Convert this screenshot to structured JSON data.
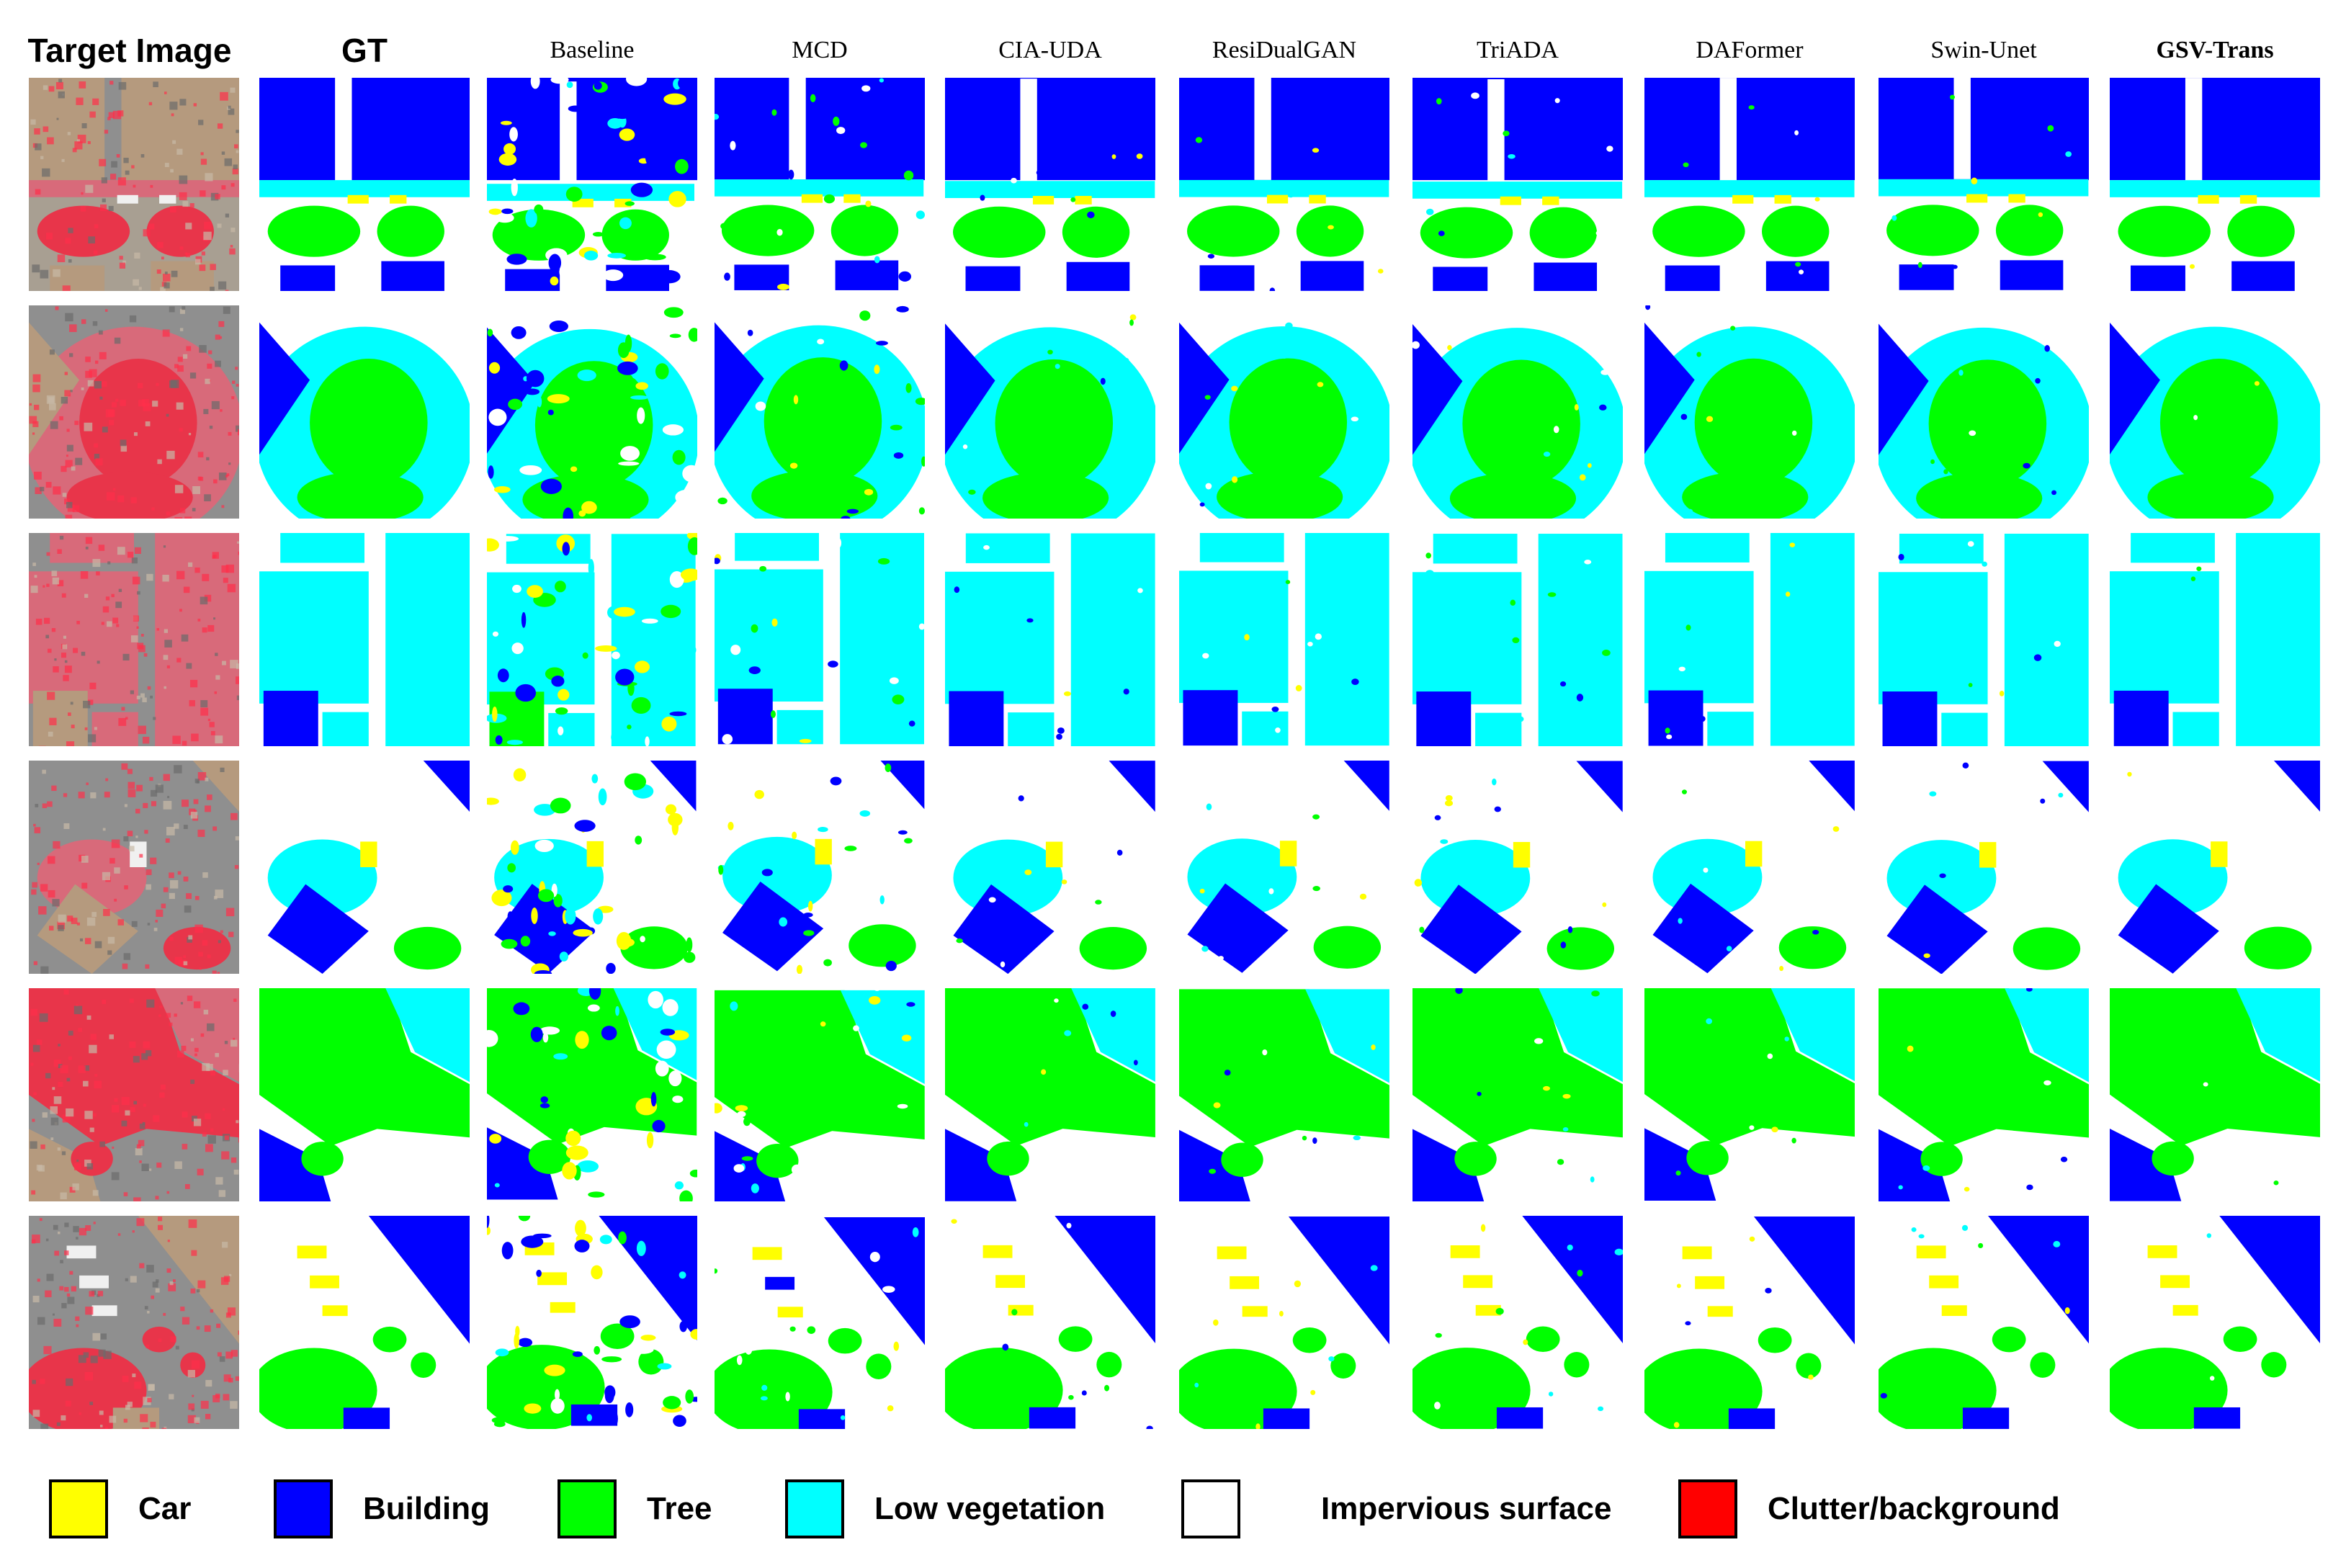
{
  "figure": {
    "columns": [
      {
        "label": "Target Image",
        "style": "bold"
      },
      {
        "label": "GT",
        "style": "bold"
      },
      {
        "label": "Baseline",
        "style": "serif"
      },
      {
        "label": "MCD",
        "style": "serif"
      },
      {
        "label": "CIA-UDA",
        "style": "serif"
      },
      {
        "label": "ResiDualGAN",
        "style": "serif"
      },
      {
        "label": "TriADA",
        "style": "serif"
      },
      {
        "label": "DAFormer",
        "style": "serif"
      },
      {
        "label": "Swin-Unet",
        "style": "serif"
      },
      {
        "label": "GSV-Trans",
        "style": "serif-bold"
      }
    ],
    "row_count": 6
  },
  "legend": {
    "items": [
      {
        "label": "Car",
        "color": "#ffff00"
      },
      {
        "label": "Building",
        "color": "#0000ff"
      },
      {
        "label": "Tree",
        "color": "#00ff00"
      },
      {
        "label": "Low vegetation",
        "color": "#00ffff"
      },
      {
        "label": "Impervious surface",
        "color": "#ffffff"
      },
      {
        "label": "Clutter/background",
        "color": "#ff0000"
      }
    ]
  },
  "colors": {
    "car": "#ffff00",
    "building": "#0000ff",
    "tree": "#00ff00",
    "low_vegetation": "#00ffff",
    "impervious": "#ffffff",
    "clutter": "#ff0000",
    "photo_red": "#e8354a",
    "photo_gray": "#9a9a9a"
  }
}
